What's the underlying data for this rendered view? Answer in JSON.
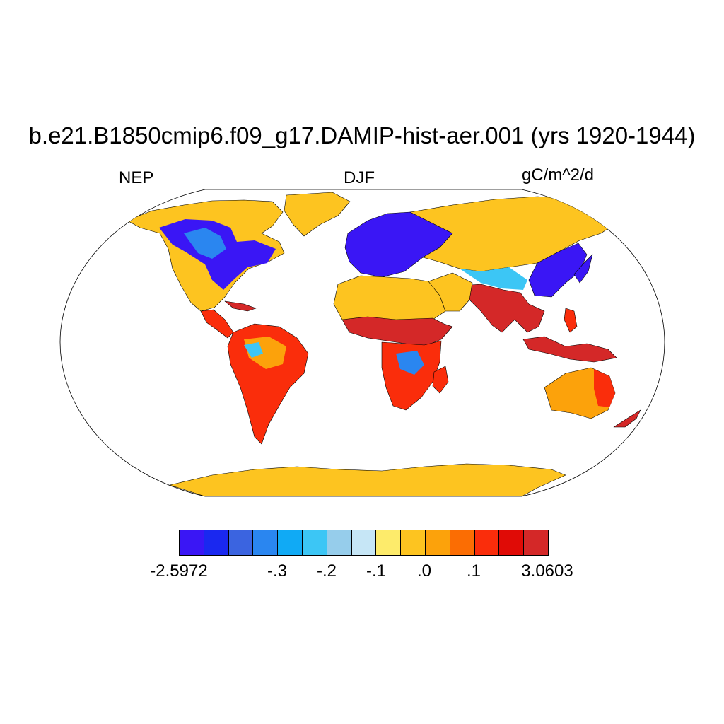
{
  "title": "b.e21.B1850cmip6.f09_g17.DAMIP-hist-aer.001 (yrs 1920-1944)",
  "left_label": "NEP",
  "center_label": "DJF",
  "right_label": "gC/m^2/d",
  "colorbar": {
    "colors": [
      "#3a16f5",
      "#1a28f0",
      "#3b64e0",
      "#2a86f0",
      "#10aaf5",
      "#3cc6f5",
      "#96cdeb",
      "#c6e6f6",
      "#fdeb6b",
      "#fdc420",
      "#fca20b",
      "#fb6d03",
      "#fa2d0b",
      "#e00b06",
      "#d42828"
    ],
    "labels": [
      "-2.5972",
      "-.3",
      "-.2",
      "-.1",
      ".0",
      ".1",
      "3.0603"
    ]
  },
  "legend_colors": {
    "land_background": "#fdc420",
    "strong_negative": "#3a16f5",
    "negative": "#1a28f0",
    "positive": "#fa2d0b",
    "strong_positive": "#d42828"
  }
}
